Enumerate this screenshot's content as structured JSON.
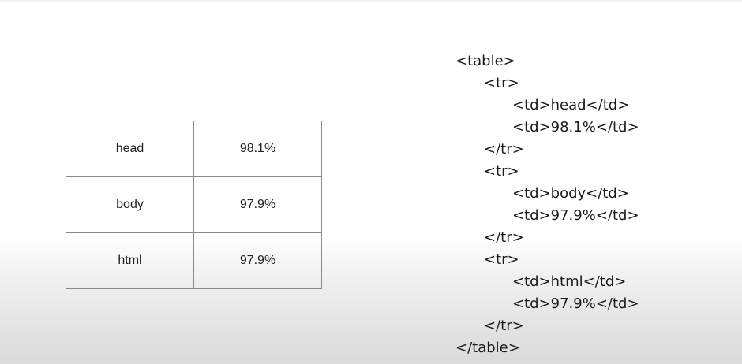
{
  "table": {
    "rows": [
      {
        "label": "head",
        "value": "98.1%"
      },
      {
        "label": "body",
        "value": "97.9%"
      },
      {
        "label": "html",
        "value": "97.9%"
      }
    ]
  },
  "code": {
    "lines": [
      {
        "text": "<table>",
        "indent": 0
      },
      {
        "text": "<tr>",
        "indent": 1
      },
      {
        "text": "<td>head</td>",
        "indent": 2
      },
      {
        "text": "<td>98.1%</td>",
        "indent": 2
      },
      {
        "text": "</tr>",
        "indent": 1
      },
      {
        "text": "<tr>",
        "indent": 1
      },
      {
        "text": "<td>body</td>",
        "indent": 2
      },
      {
        "text": "<td>97.9%</td>",
        "indent": 2
      },
      {
        "text": "</tr>",
        "indent": 1
      },
      {
        "text": "<tr>",
        "indent": 1
      },
      {
        "text": "<td>html</td>",
        "indent": 2
      },
      {
        "text": "<td>97.9%</td>",
        "indent": 2
      },
      {
        "text": "</tr>",
        "indent": 1
      },
      {
        "text": "</table>",
        "indent": 0
      }
    ]
  }
}
